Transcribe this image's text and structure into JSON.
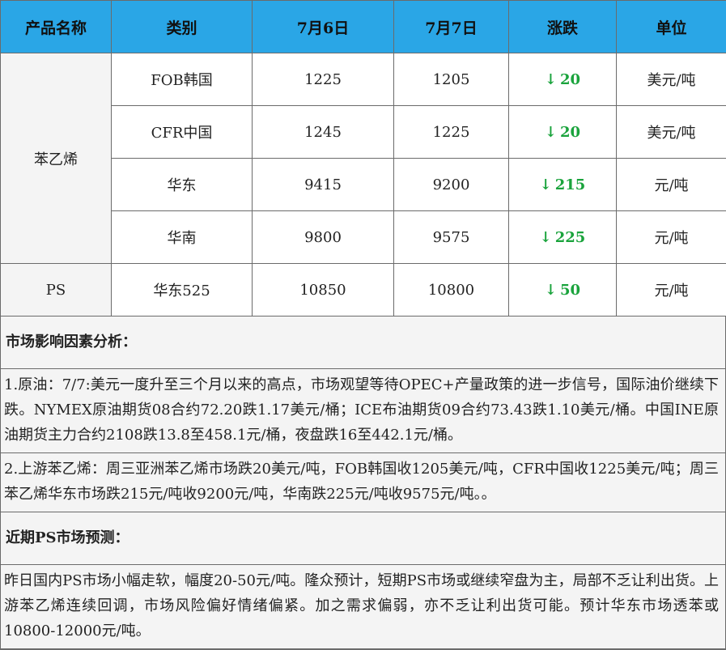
{
  "table": {
    "headers": [
      "产品名称",
      "类别",
      "7月6日",
      "7月7日",
      "涨跌",
      "单位"
    ],
    "groups": [
      {
        "product": "苯乙烯",
        "rows": [
          {
            "category": "FOB韩国",
            "jul6": "1225",
            "jul7": "1205",
            "change": "20",
            "unit": "美元/吨"
          },
          {
            "category": "CFR中国",
            "jul6": "1245",
            "jul7": "1225",
            "change": "20",
            "unit": "美元/吨"
          },
          {
            "category": "华东",
            "jul6": "9415",
            "jul7": "9200",
            "change": "215",
            "unit": "元/吨"
          },
          {
            "category": "华南",
            "jul6": "9800",
            "jul7": "9575",
            "change": "225",
            "unit": "元/吨"
          }
        ]
      },
      {
        "product": "PS",
        "rows": [
          {
            "category": "华东525",
            "jul6": "10850",
            "jul7": "10800",
            "change": "50",
            "unit": "元/吨"
          }
        ]
      }
    ],
    "down_arrow": "↓",
    "change_color": "#1aa33c",
    "header_color": "#2aa6e6"
  },
  "analysis": {
    "title": "市场影响因素分析：",
    "paragraphs": [
      "1.原油：7/7:美元一度升至三个月以来的高点，市场观望等待OPEC+产量政策的进一步信号，国际油价继续下跌。NYMEX原油期货08合约72.20跌1.17美元/桶；ICE布油期货09合约73.43跌1.10美元/桶。中国INE原油期货主力合约2108跌13.8至458.1元/桶，夜盘跌16至442.1元/桶。",
      "2.上游苯乙烯：周三亚洲苯乙烯市场跌20美元/吨，FOB韩国收1205美元/吨，CFR中国收1225美元/吨；周三苯乙烯华东市场跌215元/吨收9200元/吨，华南跌225元/吨收9575元/吨。。"
    ]
  },
  "forecast": {
    "title": "近期PS市场预测：",
    "text": "昨日国内PS市场小幅走软，幅度20-50元/吨。隆众预计，短期PS市场或继续窄盘为主，局部不乏让利出货。上游苯乙烯连续回调，市场风险偏好情绪偏紧。加之需求偏弱，亦不乏让利出货可能。预计华东市场透苯或10800-12000元/吨。"
  }
}
